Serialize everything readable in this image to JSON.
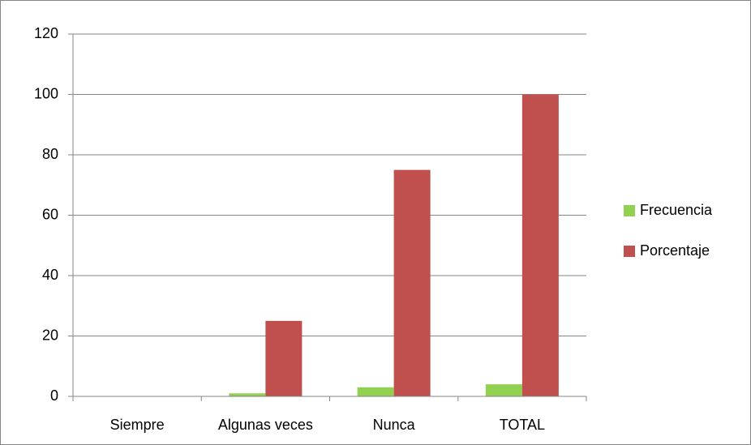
{
  "chart_data": {
    "type": "bar",
    "categories": [
      "Siempre",
      "Algunas veces",
      "Nunca",
      "TOTAL"
    ],
    "series": [
      {
        "name": "Frecuencia",
        "color": "#92d050",
        "values": [
          0,
          1,
          3,
          4
        ]
      },
      {
        "name": "Porcentaje",
        "color": "#c0504d",
        "values": [
          0,
          25,
          75,
          100
        ]
      }
    ],
    "ylim": [
      0,
      120
    ],
    "yticks": [
      0,
      20,
      40,
      60,
      80,
      100,
      120
    ],
    "grid": true,
    "legend": "right"
  }
}
